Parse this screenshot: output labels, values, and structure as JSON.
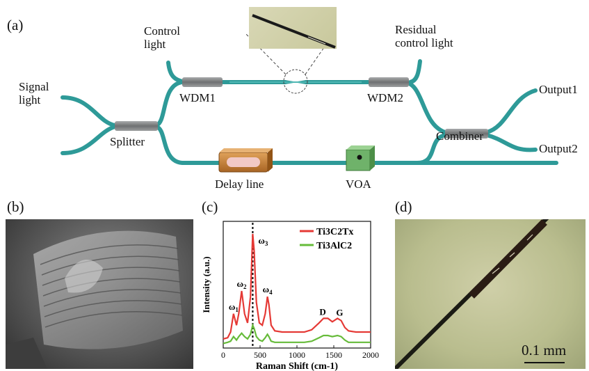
{
  "panels": {
    "a": "(a)",
    "b": "(b)",
    "c": "(c)",
    "d": "(d)"
  },
  "schematic": {
    "signal_light": "Signal\nlight",
    "control_light": "Control\nlight",
    "residual_control_light": "Residual\ncontrol light",
    "wdm1": "WDM1",
    "wdm2": "WDM2",
    "splitter": "Splitter",
    "combiner": "Combiner",
    "delay_line": "Delay line",
    "voa": "VOA",
    "output1": "Output1",
    "output2": "Output2"
  },
  "micrograph": {
    "scale_bar": "0.1 mm"
  },
  "colors": {
    "fiber": "#2e9a98",
    "fiber_dark": "#1f7473",
    "coupler": "#7d7f80",
    "delay_line": "#c9823a",
    "voa": "#6fb26a",
    "ti3c2tx": "#e53935",
    "ti3alc2": "#66bb3a"
  },
  "chart_data": {
    "type": "line",
    "title": "",
    "xlabel": "Raman Shift (cm-1)",
    "ylabel": "Intensity (a.u.)",
    "xlim": [
      0,
      2000
    ],
    "ylim": [
      0,
      1
    ],
    "xticks": [
      0,
      500,
      1000,
      1500,
      2000
    ],
    "legend_position": "top-right",
    "series": [
      {
        "name": "Ti3C2Tx",
        "x": [
          0,
          60,
          100,
          140,
          180,
          210,
          250,
          290,
          330,
          370,
          400,
          420,
          450,
          490,
          530,
          570,
          600,
          620,
          650,
          700,
          800,
          900,
          1000,
          1100,
          1200,
          1300,
          1360,
          1420,
          1480,
          1550,
          1600,
          1650,
          1700,
          1800,
          1900,
          2000
        ],
        "y": [
          0.08,
          0.09,
          0.14,
          0.3,
          0.2,
          0.3,
          0.5,
          0.3,
          0.22,
          0.45,
          1.0,
          0.85,
          0.4,
          0.22,
          0.2,
          0.3,
          0.45,
          0.38,
          0.2,
          0.15,
          0.14,
          0.14,
          0.14,
          0.14,
          0.16,
          0.22,
          0.26,
          0.26,
          0.23,
          0.26,
          0.24,
          0.18,
          0.15,
          0.14,
          0.14,
          0.14
        ]
      },
      {
        "name": "Ti3AlC2",
        "x": [
          0,
          60,
          100,
          140,
          180,
          210,
          250,
          290,
          330,
          370,
          400,
          420,
          450,
          490,
          530,
          570,
          600,
          620,
          650,
          700,
          800,
          900,
          1000,
          1100,
          1200,
          1300,
          1360,
          1420,
          1480,
          1550,
          1600,
          1650,
          1700,
          1800,
          1900,
          2000
        ],
        "y": [
          0.04,
          0.05,
          0.06,
          0.1,
          0.07,
          0.1,
          0.13,
          0.1,
          0.08,
          0.12,
          0.2,
          0.17,
          0.1,
          0.07,
          0.06,
          0.09,
          0.12,
          0.1,
          0.06,
          0.05,
          0.05,
          0.05,
          0.05,
          0.05,
          0.06,
          0.09,
          0.11,
          0.11,
          0.1,
          0.11,
          0.1,
          0.07,
          0.05,
          0.05,
          0.05,
          0.05
        ]
      }
    ],
    "reference_line_x": 400,
    "annotations": [
      {
        "text": "ω1",
        "x": 140
      },
      {
        "text": "ω2",
        "x": 250
      },
      {
        "text": "ω3",
        "x": 400
      },
      {
        "text": "ω4",
        "x": 600
      },
      {
        "text": "D",
        "x": 1350
      },
      {
        "text": "G",
        "x": 1580
      }
    ]
  }
}
